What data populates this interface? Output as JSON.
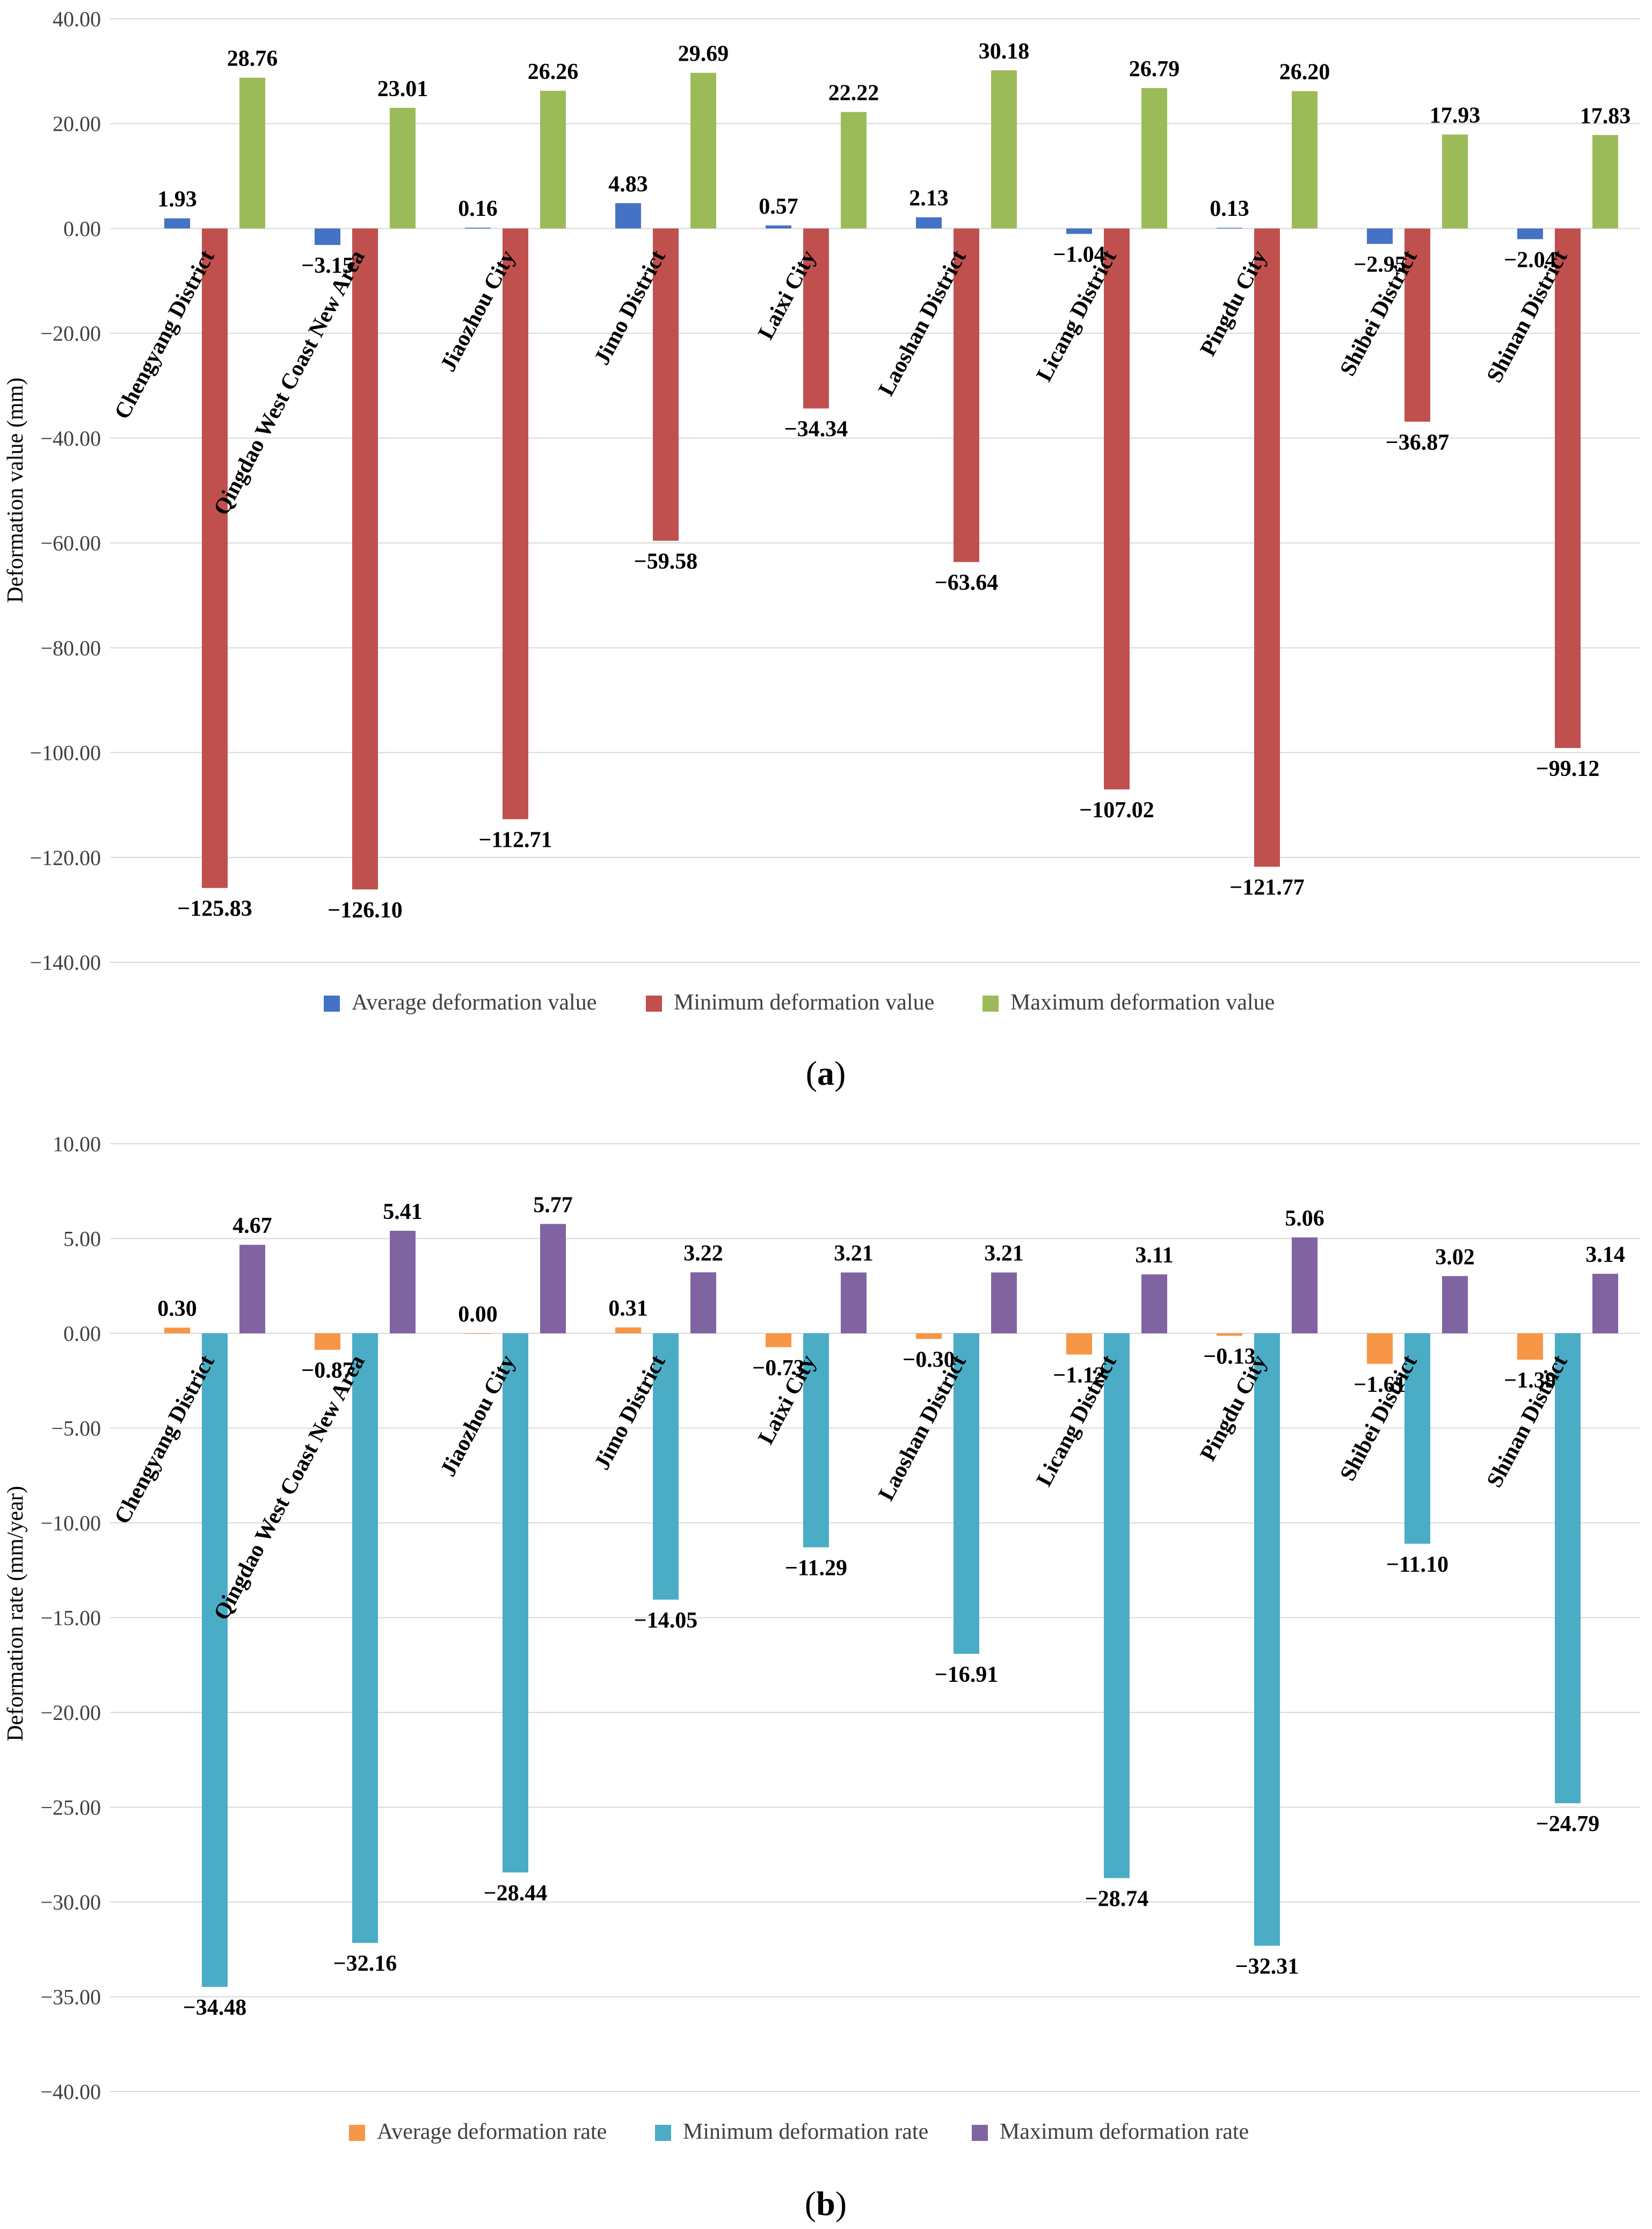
{
  "chart_data": [
    {
      "type": "bar",
      "panel_label": "a",
      "ylabel": "Deformation value (mm)",
      "ylim": [
        -140,
        40
      ],
      "ytick_step": 20,
      "grid": true,
      "legend_position": "bottom-center",
      "categories": [
        "Chengyang District",
        "Qingdao West Coast New Area",
        "Jiaozhou City",
        "Jimo District",
        "Laixi City",
        "Laoshan District",
        "Licang District",
        "Pingdu City",
        "Shibei District",
        "Shinan District"
      ],
      "series": [
        {
          "name": "Average deformation value",
          "color": "#4472c4",
          "values": [
            1.93,
            -3.15,
            0.16,
            4.83,
            0.57,
            2.13,
            -1.04,
            0.13,
            -2.95,
            -2.04
          ]
        },
        {
          "name": "Minimum deformation value",
          "color": "#c0504d",
          "values": [
            -125.83,
            -126.1,
            -112.71,
            -59.58,
            -34.34,
            -63.64,
            -107.02,
            -121.77,
            -36.87,
            -99.12
          ]
        },
        {
          "name": "Maximum deformation value",
          "color": "#9bbb59",
          "values": [
            28.76,
            23.01,
            26.26,
            29.69,
            22.22,
            30.18,
            26.79,
            26.2,
            17.93,
            17.83
          ]
        }
      ]
    },
    {
      "type": "bar",
      "panel_label": "b",
      "ylabel": "Deformation rate (mm/year)",
      "ylim": [
        -40,
        10
      ],
      "ytick_step": 5,
      "grid": true,
      "legend_position": "bottom-center",
      "categories": [
        "Chengyang District",
        "Qingdao West Coast New Area",
        "Jiaozhou City",
        "Jimo District",
        "Laixi City",
        "Laoshan District",
        "Licang District",
        "Pingdu City",
        "Shibei District",
        "Shinan District"
      ],
      "series": [
        {
          "name": "Average deformation rate",
          "color": "#f79646",
          "values": [
            0.3,
            -0.87,
            0.0,
            0.31,
            -0.73,
            -0.3,
            -1.12,
            -0.13,
            -1.61,
            -1.39
          ]
        },
        {
          "name": "Minimum deformation rate",
          "color": "#4bacc6",
          "values": [
            -34.48,
            -32.16,
            -28.44,
            -14.05,
            -11.29,
            -16.91,
            -28.74,
            -32.31,
            -11.1,
            -24.79
          ]
        },
        {
          "name": "Maximum deformation rate",
          "color": "#8064a2",
          "values": [
            4.67,
            5.41,
            5.77,
            3.22,
            3.21,
            3.21,
            3.11,
            5.06,
            3.02,
            3.14
          ]
        }
      ]
    }
  ]
}
